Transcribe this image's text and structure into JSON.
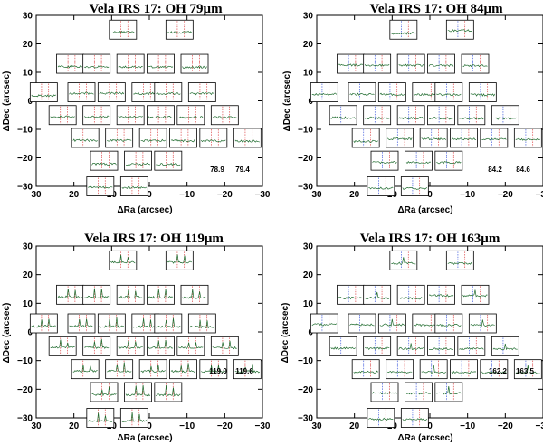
{
  "chart_data": [
    {
      "type": "spectral-map",
      "title": "Vela IRS 17: OH 79μm",
      "xlabel": "ΔRa (arcsec)",
      "ylabel": "ΔDec (arcsec)",
      "xlim": [
        30,
        -30
      ],
      "ylim": [
        -30,
        30
      ],
      "xticks": [
        "30",
        "20",
        "10",
        "0",
        "−10",
        "−20",
        "−30"
      ],
      "yticks": [
        "30",
        "20",
        "10",
        "0",
        "−10",
        "−20",
        "−30"
      ],
      "wavelength_labels": [
        "78.9",
        "79.4"
      ],
      "marker_colors": [
        "#d62728",
        "#d62728"
      ],
      "spectrum_color": "#1f6b2e"
    },
    {
      "type": "spectral-map",
      "title": "Vela IRS 17: OH 84μm",
      "xlabel": "ΔRa (arcsec)",
      "ylabel": "ΔDec (arcsec)",
      "xlim": [
        30,
        -30
      ],
      "ylim": [
        -30,
        30
      ],
      "xticks": [
        "30",
        "20",
        "10",
        "0",
        "−10",
        "−20",
        "−30"
      ],
      "yticks": [
        "30",
        "20",
        "10",
        "0",
        "−10",
        "−20",
        "−30"
      ],
      "wavelength_labels": [
        "84.2",
        "84.6"
      ],
      "marker_colors": [
        "#1f3fd6",
        "#d62728"
      ],
      "spectrum_color": "#1f6b2e"
    },
    {
      "type": "spectral-map",
      "title": "Vela IRS 17: OH 119μm",
      "xlabel": "ΔRa (arcsec)",
      "ylabel": "ΔDec (arcsec)",
      "xlim": [
        30,
        -30
      ],
      "ylim": [
        -30,
        30
      ],
      "xticks": [
        "30",
        "20",
        "10",
        "0",
        "−10",
        "−20",
        "−30"
      ],
      "yticks": [
        "30",
        "20",
        "10",
        "0",
        "−10",
        "−20",
        "−30"
      ],
      "wavelength_labels": [
        "119.0",
        "119.6"
      ],
      "marker_colors": [
        "#d62728",
        "#d62728"
      ],
      "spectrum_color": "#1f6b2e"
    },
    {
      "type": "spectral-map",
      "title": "Vela IRS 17: OH 163μm",
      "xlabel": "ΔRa (arcsec)",
      "ylabel": "ΔDec (arcsec)",
      "xlim": [
        30,
        -30
      ],
      "ylim": [
        -30,
        30
      ],
      "xticks": [
        "30",
        "20",
        "10",
        "0",
        "−10",
        "−20",
        "−30"
      ],
      "yticks": [
        "30",
        "20",
        "10",
        "0",
        "−10",
        "−20",
        "−30"
      ],
      "wavelength_labels": [
        "162.2",
        "163.5"
      ],
      "marker_colors": [
        "#1f3fd6",
        "#d62728"
      ],
      "spectrum_color": "#1f6b2e"
    }
  ],
  "spaxel_offsets": [
    {
      "ra": 7,
      "dec": 25
    },
    {
      "ra": -8,
      "dec": 25
    },
    {
      "ra": 21,
      "dec": 13
    },
    {
      "ra": 14,
      "dec": 13
    },
    {
      "ra": 5,
      "dec": 13
    },
    {
      "ra": -3,
      "dec": 13
    },
    {
      "ra": -12,
      "dec": 13
    },
    {
      "ra": 28,
      "dec": 3
    },
    {
      "ra": 18,
      "dec": 3
    },
    {
      "ra": 10,
      "dec": 3
    },
    {
      "ra": 1,
      "dec": 3
    },
    {
      "ra": -5,
      "dec": 3
    },
    {
      "ra": -14,
      "dec": 3
    },
    {
      "ra": 23,
      "dec": -5
    },
    {
      "ra": 14,
      "dec": -5
    },
    {
      "ra": 5,
      "dec": -5
    },
    {
      "ra": -3,
      "dec": -5
    },
    {
      "ra": -11,
      "dec": -5
    },
    {
      "ra": -20,
      "dec": -5
    },
    {
      "ra": 17,
      "dec": -13
    },
    {
      "ra": 8,
      "dec": -13
    },
    {
      "ra": -1,
      "dec": -13
    },
    {
      "ra": -9,
      "dec": -13
    },
    {
      "ra": -17,
      "dec": -13
    },
    {
      "ra": -26,
      "dec": -13
    },
    {
      "ra": 12,
      "dec": -21
    },
    {
      "ra": 3,
      "dec": -21
    },
    {
      "ra": -5,
      "dec": -21
    },
    {
      "ra": 13,
      "dec": -30
    },
    {
      "ra": 4,
      "dec": -30
    }
  ]
}
